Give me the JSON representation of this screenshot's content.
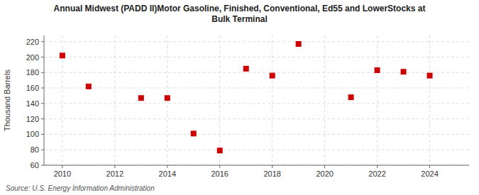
{
  "chart_data": {
    "type": "scatter",
    "title": "Annual Midwest (PADD II)Motor Gasoline, Finished, Conventional, Ed55 and LowerStocks at\nBulk Terminal",
    "ylabel": "Thousand Barrels",
    "source": "Source: U.S. Energy Information Administration",
    "x": [
      2010,
      2011,
      2013,
      2014,
      2015,
      2016,
      2017,
      2018,
      2019,
      2021,
      2022,
      2023,
      2024
    ],
    "values": [
      202,
      162,
      147,
      147,
      101,
      79,
      185,
      176,
      217,
      148,
      183,
      181,
      176
    ],
    "color": "#cc0000",
    "marker": "square",
    "xlim": [
      2009.3,
      2025.5
    ],
    "ylim": [
      60,
      228
    ],
    "xticks": [
      2010,
      2012,
      2014,
      2016,
      2018,
      2020,
      2022,
      2024
    ],
    "yticks": [
      60,
      80,
      100,
      120,
      140,
      160,
      180,
      200,
      220
    ],
    "grid": true
  }
}
